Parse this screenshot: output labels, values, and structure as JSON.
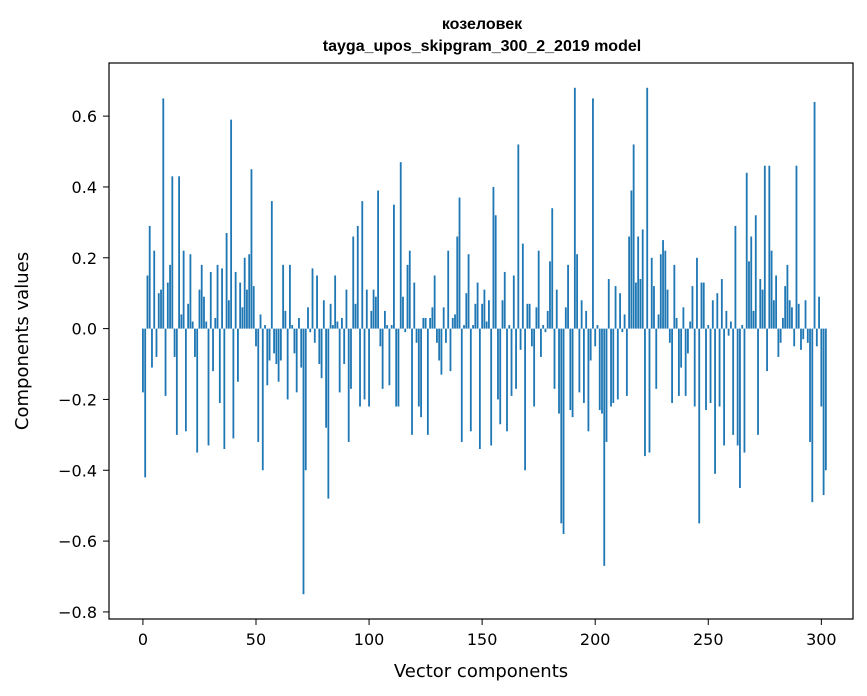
{
  "chart_data": {
    "type": "bar",
    "title": "козеловек",
    "subtitle": "tayga_upos_skipgram_300_2_2019 model",
    "xlabel": "Vector components",
    "ylabel": "Components values",
    "xlim": [
      -15,
      314
    ],
    "ylim": [
      -0.82,
      0.75
    ],
    "xticks": [
      0,
      50,
      100,
      150,
      200,
      250,
      300
    ],
    "yticks": [
      -0.8,
      -0.6,
      -0.4,
      -0.2,
      0.0,
      0.2,
      0.4,
      0.6
    ],
    "ytick_labels": [
      "−0.8",
      "−0.6",
      "−0.4",
      "−0.2",
      "0.0",
      "0.2",
      "0.4",
      "0.6"
    ],
    "bar_color": "#1f77b4",
    "grid": false,
    "legend": "none",
    "values": [
      -0.18,
      -0.42,
      0.15,
      0.29,
      -0.11,
      0.22,
      -0.08,
      0.1,
      0.11,
      0.65,
      -0.19,
      0.13,
      0.18,
      0.43,
      -0.08,
      -0.3,
      0.43,
      0.04,
      0.22,
      -0.29,
      0.07,
      0.21,
      0.02,
      -0.08,
      -0.35,
      0.11,
      0.18,
      0.09,
      0.02,
      -0.33,
      0.16,
      -0.12,
      0.03,
      0.18,
      -0.21,
      0.17,
      -0.34,
      0.27,
      0.08,
      0.59,
      -0.31,
      0.16,
      -0.15,
      0.13,
      0.06,
      0.2,
      0.11,
      0.21,
      0.45,
      0.12,
      -0.05,
      -0.32,
      0.04,
      -0.4,
      0.01,
      -0.16,
      -0.09,
      0.36,
      -0.07,
      -0.1,
      -0.15,
      -0.09,
      0.18,
      0.05,
      -0.2,
      0.18,
      0.01,
      -0.07,
      -0.18,
      0.03,
      -0.11,
      -0.75,
      -0.4,
      0.06,
      -0.01,
      0.17,
      -0.04,
      0.15,
      -0.1,
      -0.14,
      0.08,
      -0.28,
      -0.48,
      0.07,
      0.01,
      0.15,
      0.02,
      -0.18,
      0.03,
      -0.1,
      0.11,
      -0.32,
      -0.17,
      0.26,
      0.07,
      0.29,
      -0.22,
      0.36,
      -0.2,
      0.11,
      -0.22,
      0.05,
      0.11,
      0.09,
      0.39,
      -0.05,
      -0.17,
      0.05,
      0.01,
      -0.16,
      0.01,
      0.35,
      -0.22,
      -0.22,
      0.47,
      0.09,
      -0.01,
      0.18,
      0.22,
      -0.3,
      0.13,
      -0.04,
      -0.22,
      -0.25,
      0.03,
      0.03,
      -0.3,
      0.03,
      0.06,
      0.15,
      -0.04,
      -0.09,
      -0.13,
      0.06,
      -0.04,
      0.22,
      -0.12,
      0.03,
      0.04,
      0.26,
      0.37,
      -0.32,
      0.01,
      0.1,
      0.21,
      -0.29,
      0.01,
      0.07,
      0.13,
      -0.34,
      0.07,
      0.11,
      0.02,
      0.08,
      -0.33,
      0.4,
      0.32,
      -0.2,
      -0.27,
      0.08,
      0.16,
      -0.29,
      0.01,
      -0.19,
      0.15,
      -0.17,
      0.52,
      -0.06,
      0.24,
      -0.4,
      0.07,
      0.07,
      -0.05,
      -0.22,
      0.06,
      0.22,
      -0.08,
      0.01,
      -0.01,
      0.05,
      0.19,
      0.34,
      -0.17,
      0.11,
      -0.24,
      -0.55,
      -0.58,
      0.06,
      0.18,
      -0.23,
      -0.25,
      0.68,
      0.21,
      -0.18,
      0.08,
      -0.21,
      0.05,
      -0.29,
      -0.09,
      0.65,
      -0.05,
      0.01,
      -0.23,
      -0.24,
      -0.67,
      -0.32,
      0.14,
      -0.22,
      -0.21,
      0.12,
      -0.2,
      0.1,
      -0.01,
      0.04,
      -0.19,
      0.26,
      0.39,
      0.52,
      0.13,
      0.26,
      0.14,
      0.28,
      -0.36,
      0.68,
      -0.35,
      0.2,
      0.12,
      -0.17,
      0.04,
      0.21,
      0.25,
      0.22,
      0.11,
      -0.04,
      -0.21,
      0.18,
      0.03,
      -0.19,
      -0.11,
      0.06,
      -0.19,
      -0.07,
      0.02,
      0.12,
      -0.22,
      0.2,
      -0.55,
      0.13,
      0.13,
      -0.23,
      0.01,
      -0.21,
      0.08,
      -0.41,
      0.1,
      -0.22,
      0.14,
      -0.33,
      0.05,
      -0.02,
      0.02,
      -0.3,
      0.29,
      -0.33,
      -0.45,
      0.01,
      -0.35,
      0.44,
      0.19,
      0.26,
      0.05,
      0.32,
      -0.3,
      0.14,
      0.11,
      0.46,
      -0.12,
      0.46,
      0.22,
      0.08,
      0.15,
      -0.08,
      -0.04,
      0.03,
      0.12,
      0.18,
      0.08,
      0.06,
      -0.05,
      0.46,
      0.07,
      -0.06,
      -0.03,
      0.08,
      -0.04,
      -0.32,
      -0.49,
      0.64,
      -0.05,
      0.09,
      -0.22,
      -0.47,
      -0.4
    ]
  }
}
